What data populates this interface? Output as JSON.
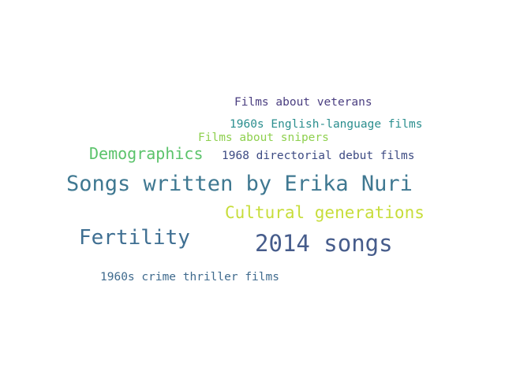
{
  "words": [
    {
      "text": "Songs written by Erika Nuri",
      "color": "#3f7891"
    },
    {
      "text": "2014 songs",
      "color": "#465c8b"
    },
    {
      "text": "Fertility",
      "color": "#3f6f92"
    },
    {
      "text": "Cultural generations",
      "color": "#c7dd3a"
    },
    {
      "text": "Demographics",
      "color": "#5bc36b"
    },
    {
      "text": "1968 directorial debut films",
      "color": "#3d4b83"
    },
    {
      "text": "Films about snipers",
      "color": "#8ed04e"
    },
    {
      "text": "1960s English-language films",
      "color": "#2a8e8e"
    },
    {
      "text": "Films about veterans",
      "color": "#4a3e80"
    },
    {
      "text": "1960s crime thriller films",
      "color": "#3f6a8d"
    }
  ]
}
